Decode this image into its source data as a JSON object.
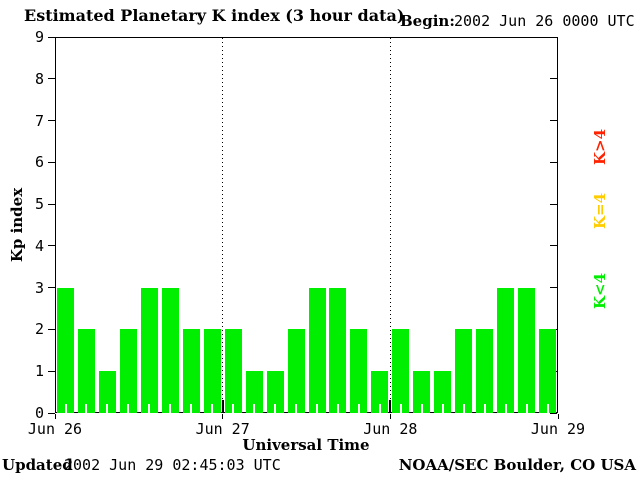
{
  "header": {
    "begin_label": "Begin:",
    "begin_value": "2002 Jun 26 0000 UTC"
  },
  "footer": {
    "updated_label": "Updated",
    "updated_value": "2002 Jun 29 02:45:03 UTC",
    "credit": "NOAA/SEC Boulder, CO USA"
  },
  "chart_data": {
    "type": "bar",
    "title": "Estimated Planetary K index (3 hour data)",
    "xlabel": "Universal Time",
    "ylabel": "Kp index",
    "ylim": [
      0,
      9
    ],
    "yticks": [
      0,
      1,
      2,
      3,
      4,
      5,
      6,
      7,
      8,
      9
    ],
    "bin_hours": 3,
    "x_day_labels": [
      "Jun 26",
      "Jun 27",
      "Jun 28",
      "Jun 29"
    ],
    "values": [
      3,
      2,
      1,
      2,
      3,
      3,
      2,
      2,
      2,
      1,
      1,
      2,
      3,
      3,
      2,
      1,
      2,
      1,
      1,
      2,
      2,
      3,
      3,
      2
    ],
    "bar_color": "#00ee00",
    "grid": "dotted vertical lines at day boundaries",
    "legend_position": "right, rotated 90deg",
    "legend": [
      {
        "label": "K>4",
        "color": "#ff2200"
      },
      {
        "label": "K=4",
        "color": "#ffcc00"
      },
      {
        "label": "K<4",
        "color": "#00ee00"
      }
    ]
  }
}
